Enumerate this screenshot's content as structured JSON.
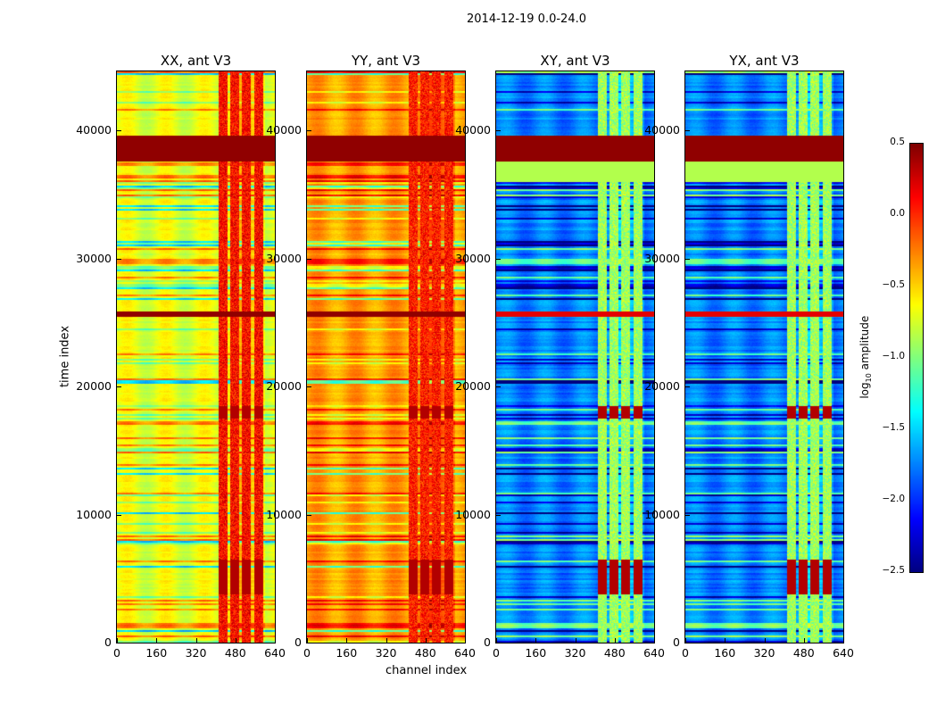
{
  "title": "2014-12-19 0.0-24.0",
  "chart_data": {
    "type": "heatmap",
    "title": "2014-12-19 0.0-24.0",
    "xlabel": "channel index",
    "ylabel": "time index",
    "xlim": [
      0,
      640
    ],
    "ylim": [
      0,
      44600
    ],
    "xticks": [
      "0",
      "160",
      "320",
      "480",
      "640"
    ],
    "yticks": [
      "0",
      "10000",
      "20000",
      "30000",
      "40000"
    ],
    "yticks_values": [
      0,
      10000,
      20000,
      30000,
      40000
    ],
    "colormap": "jet",
    "colorbar": {
      "label_prefix": "log",
      "label_sub": "10",
      "label_suffix": " amplitude",
      "range": [
        -2.5,
        0.5
      ],
      "ticks": [
        "0.5",
        "0.0",
        "−0.5",
        "−1.0",
        "−1.5",
        "−2.0",
        "−2.5"
      ],
      "tick_values": [
        0.5,
        0,
        -0.5,
        -1,
        -1.5,
        -2,
        -2.5
      ]
    },
    "rfi_channel_range": [
      410,
      600
    ],
    "saturated_time_bands": [
      [
        37600,
        39600
      ],
      [
        25500,
        25900
      ]
    ],
    "panels": [
      {
        "title": "XX, ant V3",
        "base_level": -0.7,
        "rfi_level": 0.1
      },
      {
        "title": "YY, ant V3",
        "base_level": -0.35,
        "rfi_level": 0.05
      },
      {
        "title": "XY, ant V3",
        "base_level": -1.75,
        "rfi_level": -0.9
      },
      {
        "title": "YX, ant V3",
        "base_level": -1.75,
        "rfi_level": -0.9
      }
    ]
  }
}
